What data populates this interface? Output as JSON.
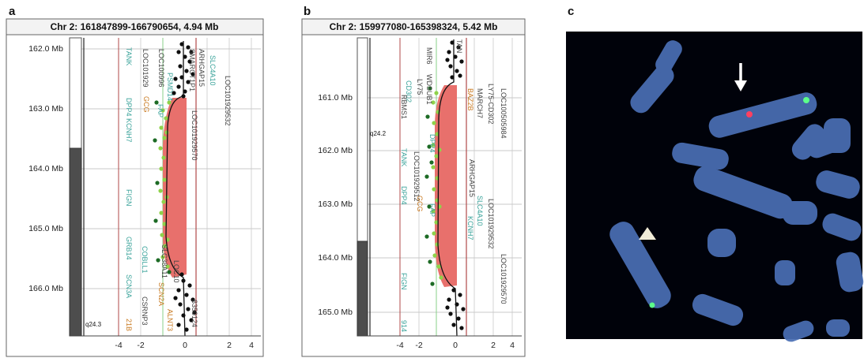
{
  "figure": {
    "panels": [
      {
        "letter": "a",
        "title": "Chr 2: 161847899-166790654, 4.94 Mb",
        "y_ticks": [
          "162.0 Mb",
          "163.0 Mb",
          "164.0 Mb",
          "165.0 Mb",
          "166.0 Mb"
        ],
        "x_ticks": [
          "-4",
          "-2",
          "0",
          "2",
          "4"
        ],
        "band_label": "q24.3",
        "genes": [
          {
            "label": "TANK",
            "color": "#3aa39a"
          },
          {
            "label": "LOC101929",
            "color": "#444444"
          },
          {
            "label": "LOC100996",
            "color": "#444444"
          },
          {
            "label": "PSMD14",
            "color": "#3aa39a"
          },
          {
            "label": "DPP4",
            "color": "#3aa39a"
          },
          {
            "label": "GCG",
            "color": "#c8781e"
          },
          {
            "label": "FAP",
            "color": "#3aa39a"
          },
          {
            "label": "KCNH7",
            "color": "#3aa39a"
          },
          {
            "label": "FIGN",
            "color": "#3aa39a"
          },
          {
            "label": "GRB14",
            "color": "#3aa39a"
          },
          {
            "label": "COBLL1",
            "color": "#3aa39a"
          },
          {
            "label": "SCN3A",
            "color": "#3aa39a"
          },
          {
            "label": "SLC38A11",
            "color": "#444444"
          },
          {
            "label": "SCN2A",
            "color": "#c8781e"
          },
          {
            "label": "CSRNP3",
            "color": "#444444"
          },
          {
            "label": "21B",
            "color": "#c8781e"
          },
          {
            "label": "ALNT3",
            "color": "#c8781e"
          },
          {
            "label": "LOC101929570",
            "color": "#444444"
          },
          {
            "label": "ARHGAP15",
            "color": "#444444"
          },
          {
            "label": "SLC4A10",
            "color": "#3aa39a"
          },
          {
            "label": "LOC101929532",
            "color": "#444444"
          },
          {
            "label": "LOC10",
            "color": "#444444"
          },
          {
            "label": "8350124",
            "color": "#444444"
          },
          {
            "label": "SMARCT1P1",
            "color": "#444444"
          }
        ]
      },
      {
        "letter": "b",
        "title": "Chr 2: 159977080-165398324, 5.42 Mb",
        "y_ticks": [
          "161.0 Mb",
          "162.0 Mb",
          "163.0 Mb",
          "164.0 Mb",
          "165.0 Mb"
        ],
        "x_ticks": [
          "-4",
          "-2",
          "0",
          "2",
          "4"
        ],
        "band_label": "q24.2",
        "genes": [
          {
            "label": "CD302",
            "color": "#3aa39a"
          },
          {
            "label": "LY75",
            "color": "#444444"
          },
          {
            "label": "RBMS1",
            "color": "#444444"
          },
          {
            "label": "TANK",
            "color": "#3aa39a"
          },
          {
            "label": "LOC101929512",
            "color": "#444444"
          },
          {
            "label": "DPP4",
            "color": "#3aa39a"
          },
          {
            "label": "GCG",
            "color": "#c8781e"
          },
          {
            "label": "FAP",
            "color": "#3aa39a"
          },
          {
            "label": "FIGN",
            "color": "#3aa39a"
          },
          {
            "label": "914",
            "color": "#3aa39a"
          },
          {
            "label": "MIR6",
            "color": "#444444"
          },
          {
            "label": "WDSUB1",
            "color": "#444444"
          },
          {
            "label": "BAZ2B",
            "color": "#c8781e"
          },
          {
            "label": "MARCH7",
            "color": "#444444"
          },
          {
            "label": "LY75-CD302",
            "color": "#444444"
          },
          {
            "label": "LOC100505984",
            "color": "#444444"
          },
          {
            "label": "ARHGAP15",
            "color": "#444444"
          },
          {
            "label": "SLC4A10",
            "color": "#3aa39a"
          },
          {
            "label": "LOC101929532",
            "color": "#444444"
          },
          {
            "label": "LOC101929570",
            "color": "#444444"
          },
          {
            "label": "KCNH7",
            "color": "#3aa39a"
          },
          {
            "label": "TAN",
            "color": "#444444"
          },
          {
            "label": "DPP4",
            "color": "#3aa39a"
          }
        ]
      },
      {
        "letter": "c"
      }
    ],
    "colors": {
      "deletion_fill": "#e8706c",
      "dark_points": "#0e0e0e",
      "green_dark": "#1d6b25",
      "green_light": "#8fd24a",
      "probe_line": "#8ad08a",
      "background_c": "#00020a",
      "chromosome": "#4a6fb5",
      "signal_red": "#ff4060",
      "signal_green": "#5cff8a"
    }
  }
}
